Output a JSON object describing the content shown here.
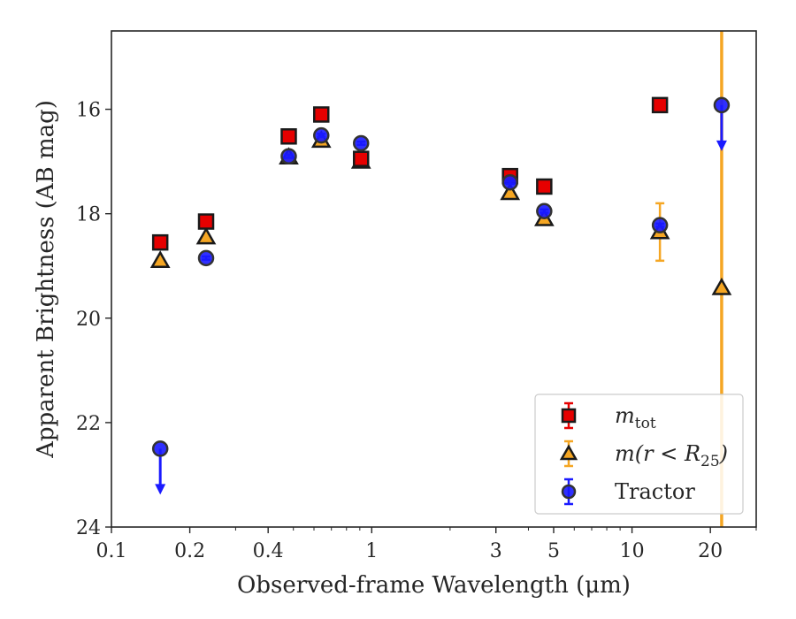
{
  "chart_data": {
    "type": "scatter",
    "title": "",
    "xlabel": "Observed-frame Wavelength (μm)",
    "ylabel": "Apparent Brightness (AB mag)",
    "xscale": "log",
    "xlim": [
      0.1,
      30
    ],
    "ylim": [
      24,
      14.5
    ],
    "y_inverted": true,
    "x_ticks": [
      0.1,
      0.2,
      0.4,
      1,
      3,
      5,
      10,
      20
    ],
    "x_tick_labels": [
      "0.1",
      "0.2",
      "0.4",
      "1",
      "3",
      "5",
      "10",
      "20"
    ],
    "y_ticks": [
      16,
      18,
      20,
      22,
      24
    ],
    "y_tick_labels": [
      "16",
      "18",
      "20",
      "22",
      "24"
    ],
    "legend_position": "lower-right",
    "grid": false,
    "vertical_line": {
      "x": 22.1,
      "color": "#f5a623"
    },
    "series": [
      {
        "name": "m_tot",
        "legend_main": "m",
        "legend_sub": "tot",
        "marker": "square",
        "color": "#e60000",
        "x": [
          0.154,
          0.231,
          0.48,
          0.64,
          0.91,
          3.4,
          4.6,
          12.8
        ],
        "y": [
          18.55,
          18.15,
          16.52,
          16.1,
          16.95,
          17.28,
          17.48,
          15.92
        ],
        "yerr": [
          0.05,
          0.05,
          0.05,
          0.05,
          0.05,
          0.05,
          0.05,
          0.05
        ],
        "upper_limit": [
          false,
          false,
          false,
          false,
          false,
          false,
          false,
          false
        ]
      },
      {
        "name": "m(r < R25)",
        "legend_main": "m(r < R",
        "legend_sub": "25",
        "legend_end": ")",
        "marker": "triangle",
        "color": "#f5a623",
        "x": [
          0.154,
          0.231,
          0.48,
          0.64,
          0.91,
          3.4,
          4.6,
          12.8,
          22.1
        ],
        "y": [
          18.9,
          18.45,
          16.92,
          16.6,
          17.0,
          17.6,
          18.1,
          18.35,
          19.42
        ],
        "yerr": [
          0.03,
          0.03,
          0.03,
          0.03,
          0.03,
          0.03,
          0.03,
          0.55,
          0
        ],
        "upper_limit": [
          false,
          false,
          false,
          false,
          false,
          false,
          false,
          false,
          false
        ]
      },
      {
        "name": "Tractor",
        "legend_main": "Tractor",
        "marker": "circle",
        "color": "#1a1aff",
        "x": [
          0.154,
          0.231,
          0.48,
          0.64,
          0.91,
          3.4,
          4.6,
          12.8,
          22.1
        ],
        "y": [
          22.5,
          18.85,
          16.9,
          16.5,
          16.65,
          17.4,
          17.95,
          18.22,
          15.92
        ],
        "yerr": [
          0,
          0.03,
          0.03,
          0.03,
          0.03,
          0.03,
          0.03,
          0.03,
          0
        ],
        "upper_limit": [
          true,
          false,
          false,
          false,
          false,
          false,
          false,
          false,
          true
        ]
      }
    ]
  }
}
